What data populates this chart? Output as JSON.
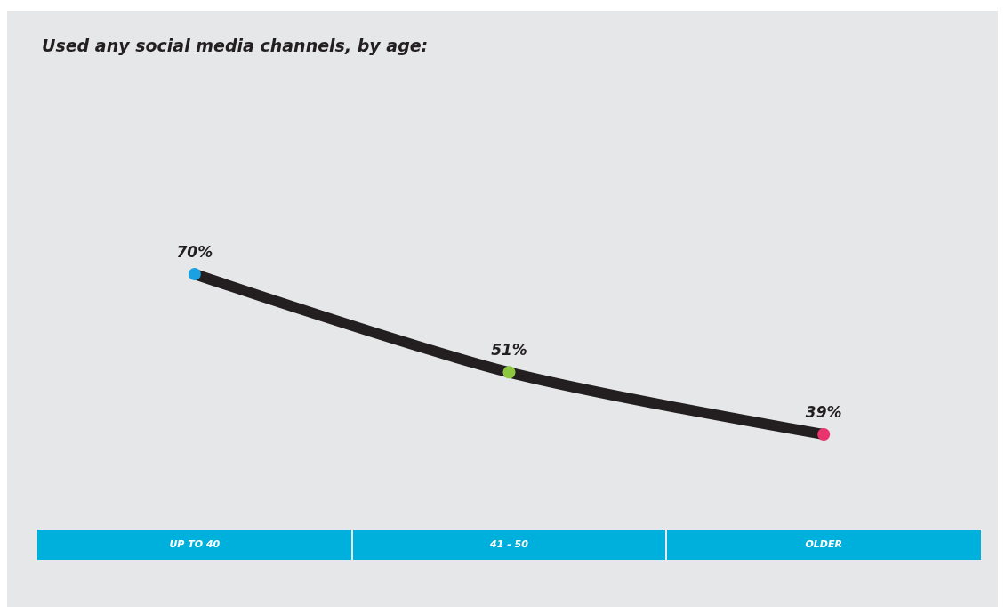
{
  "chart_data": {
    "type": "line",
    "title": "Used any social media channels, by age:",
    "categories": [
      "UP TO 40",
      "41 - 50",
      "OLDER"
    ],
    "series": [
      {
        "color": "#231f20",
        "colors": [
          "#1ba1e2",
          "#8dc63f",
          "#e8336d"
        ],
        "values": [
          70,
          51,
          39
        ],
        "value_labels": [
          "70%",
          "51%",
          "39%"
        ]
      }
    ],
    "tick_labels": "x",
    "marker": "circle",
    "line_style": "solid"
  }
}
